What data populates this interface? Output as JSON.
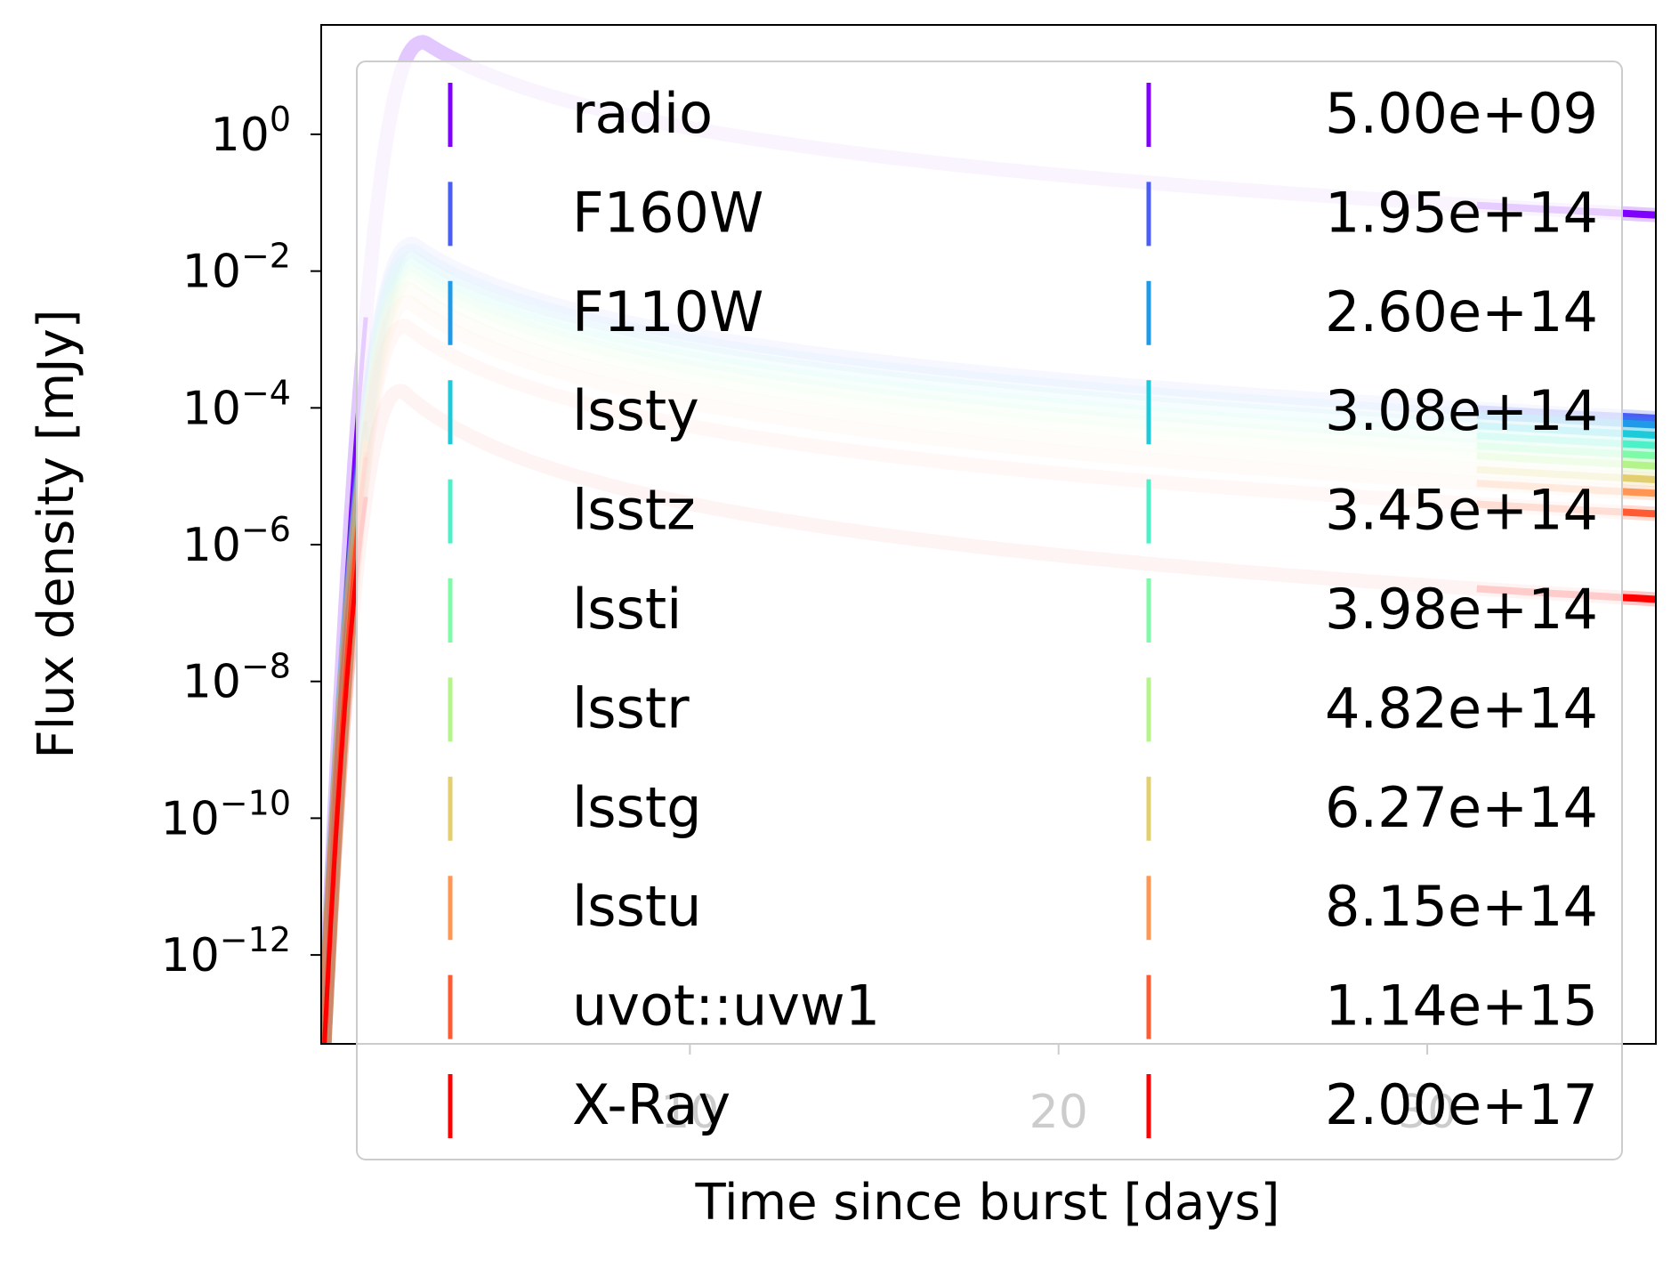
{
  "chart_data": {
    "type": "line",
    "title": "",
    "xlabel": "Time since burst [days]",
    "ylabel": "Flux density [mJy]",
    "xlim": [
      0,
      36.2
    ],
    "ylim": [
      -13.3,
      1.6
    ],
    "yscale": "log",
    "grid": false,
    "legend_position": "upper-right",
    "legend_columns": 2,
    "xticks": [
      10,
      20,
      30
    ],
    "xtick_labels": [
      "10",
      "20",
      "30"
    ],
    "yticks": [
      0,
      -2,
      -4,
      -6,
      -8,
      -10,
      -12
    ],
    "ytick_labels": [
      {
        "base": "10",
        "exp": "0"
      },
      {
        "base": "10",
        "exp": "−2"
      },
      {
        "base": "10",
        "exp": "−4"
      },
      {
        "base": "10",
        "exp": "−6"
      },
      {
        "base": "10",
        "exp": "−8"
      },
      {
        "base": "10",
        "exp": "−10"
      },
      {
        "base": "10",
        "exp": "−12"
      }
    ],
    "legend_left": [
      "radio",
      "F160W",
      "F110W",
      "lssty",
      "lsstz",
      "lssti",
      "lsstr",
      "lsstg",
      "lsstu",
      "uvot::uvw1",
      "X-Ray"
    ],
    "legend_right": [
      "5.00e+09",
      "1.95e+14",
      "2.60e+14",
      "3.08e+14",
      "3.45e+14",
      "3.98e+14",
      "4.82e+14",
      "6.27e+14",
      "8.15e+14",
      "1.14e+15",
      "2.00e+17"
    ],
    "series": [
      {
        "color": "#8000ff",
        "t_peak": 2.8,
        "log_peak": 1.35,
        "log_end": -1.18
      },
      {
        "color": "#4a5ef6",
        "t_peak": 2.5,
        "log_peak": -1.6,
        "log_end": -4.15
      },
      {
        "color": "#1f9ae8",
        "t_peak": 2.5,
        "log_peak": -1.7,
        "log_end": -4.25
      },
      {
        "color": "#1ccad9",
        "t_peak": 2.5,
        "log_peak": -1.8,
        "log_end": -4.4
      },
      {
        "color": "#4ef0c8",
        "t_peak": 2.5,
        "log_peak": -1.9,
        "log_end": -4.55
      },
      {
        "color": "#7ffaa8",
        "t_peak": 2.5,
        "log_peak": -2.0,
        "log_end": -4.7
      },
      {
        "color": "#b4f48a",
        "t_peak": 2.5,
        "log_peak": -2.1,
        "log_end": -4.85
      },
      {
        "color": "#e2cf6f",
        "t_peak": 2.4,
        "log_peak": -2.25,
        "log_end": -5.05
      },
      {
        "color": "#ff9654",
        "t_peak": 2.4,
        "log_peak": -2.45,
        "log_end": -5.25
      },
      {
        "color": "#ff5a32",
        "t_peak": 2.3,
        "log_peak": -2.8,
        "log_end": -5.55
      },
      {
        "color": "#ff0000",
        "t_peak": 2.2,
        "log_peak": -3.75,
        "log_end": -6.8
      }
    ]
  }
}
